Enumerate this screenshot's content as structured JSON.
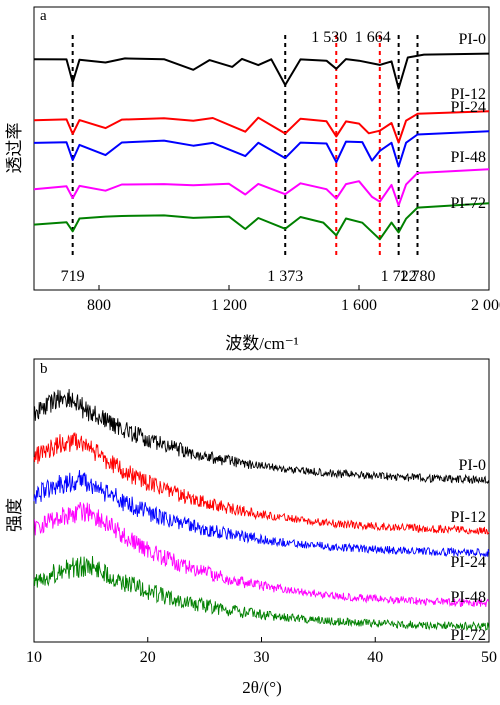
{
  "chart_data": [
    {
      "panel": "a",
      "type": "line",
      "xlabel": "波数/cm⁻¹",
      "ylabel": "透过率",
      "xlim": [
        600,
        2000
      ],
      "xticks": [
        800,
        1200,
        1600,
        2000
      ],
      "xtick_labels": [
        "800",
        "1 200",
        "1 600",
        "2 000"
      ],
      "series": [
        {
          "name": "PI-0",
          "color": "#000000",
          "values": [
            [
              600,
              0.56
            ],
            [
              700,
              0.56
            ],
            [
              719,
              0.1
            ],
            [
              740,
              0.54
            ],
            [
              820,
              0.5
            ],
            [
              880,
              0.56
            ],
            [
              1000,
              0.55
            ],
            [
              1090,
              0.35
            ],
            [
              1140,
              0.54
            ],
            [
              1210,
              0.4
            ],
            [
              1240,
              0.55
            ],
            [
              1290,
              0.45
            ],
            [
              1330,
              0.55
            ],
            [
              1373,
              0.05
            ],
            [
              1420,
              0.55
            ],
            [
              1500,
              0.52
            ],
            [
              1530,
              0.36
            ],
            [
              1560,
              0.56
            ],
            [
              1600,
              0.52
            ],
            [
              1664,
              0.44
            ],
            [
              1700,
              0.5
            ],
            [
              1722,
              0.0
            ],
            [
              1750,
              0.58
            ],
            [
              1800,
              0.65
            ],
            [
              2000,
              0.66
            ]
          ]
        },
        {
          "name": "PI-12",
          "color": "#ff0000",
          "values": [
            [
              600,
              0.45
            ],
            [
              700,
              0.48
            ],
            [
              719,
              0.2
            ],
            [
              740,
              0.45
            ],
            [
              820,
              0.3
            ],
            [
              870,
              0.46
            ],
            [
              1000,
              0.5
            ],
            [
              1090,
              0.44
            ],
            [
              1150,
              0.5
            ],
            [
              1250,
              0.24
            ],
            [
              1290,
              0.5
            ],
            [
              1373,
              0.2
            ],
            [
              1420,
              0.48
            ],
            [
              1500,
              0.44
            ],
            [
              1530,
              0.14
            ],
            [
              1560,
              0.44
            ],
            [
              1600,
              0.4
            ],
            [
              1630,
              0.2
            ],
            [
              1664,
              0.26
            ],
            [
              1700,
              0.4
            ],
            [
              1722,
              0.02
            ],
            [
              1745,
              0.45
            ],
            [
              1780,
              0.58
            ],
            [
              2000,
              0.62
            ]
          ]
        },
        {
          "name": "PI-24",
          "color": "#0000ff",
          "values": [
            [
              600,
              0.48
            ],
            [
              700,
              0.5
            ],
            [
              719,
              0.15
            ],
            [
              740,
              0.45
            ],
            [
              820,
              0.25
            ],
            [
              870,
              0.48
            ],
            [
              1000,
              0.52
            ],
            [
              1090,
              0.44
            ],
            [
              1150,
              0.48
            ],
            [
              1250,
              0.22
            ],
            [
              1290,
              0.48
            ],
            [
              1373,
              0.2
            ],
            [
              1420,
              0.5
            ],
            [
              1500,
              0.46
            ],
            [
              1530,
              0.12
            ],
            [
              1560,
              0.5
            ],
            [
              1610,
              0.5
            ],
            [
              1640,
              0.15
            ],
            [
              1664,
              0.32
            ],
            [
              1700,
              0.48
            ],
            [
              1722,
              0.02
            ],
            [
              1745,
              0.48
            ],
            [
              1780,
              0.65
            ],
            [
              2000,
              0.7
            ]
          ]
        },
        {
          "name": "PI-48",
          "color": "#ff00ff",
          "values": [
            [
              600,
              0.4
            ],
            [
              700,
              0.46
            ],
            [
              719,
              0.22
            ],
            [
              740,
              0.46
            ],
            [
              820,
              0.38
            ],
            [
              870,
              0.48
            ],
            [
              1000,
              0.5
            ],
            [
              1090,
              0.48
            ],
            [
              1200,
              0.5
            ],
            [
              1250,
              0.3
            ],
            [
              1290,
              0.5
            ],
            [
              1373,
              0.3
            ],
            [
              1420,
              0.52
            ],
            [
              1500,
              0.4
            ],
            [
              1530,
              0.22
            ],
            [
              1560,
              0.5
            ],
            [
              1600,
              0.55
            ],
            [
              1640,
              0.25
            ],
            [
              1664,
              0.16
            ],
            [
              1700,
              0.48
            ],
            [
              1722,
              0.08
            ],
            [
              1745,
              0.5
            ],
            [
              1780,
              0.7
            ],
            [
              2000,
              0.78
            ]
          ]
        },
        {
          "name": "PI-72",
          "color": "#008000",
          "values": [
            [
              600,
              0.38
            ],
            [
              700,
              0.42
            ],
            [
              719,
              0.25
            ],
            [
              740,
              0.48
            ],
            [
              820,
              0.52
            ],
            [
              870,
              0.55
            ],
            [
              1000,
              0.56
            ],
            [
              1090,
              0.5
            ],
            [
              1200,
              0.52
            ],
            [
              1250,
              0.3
            ],
            [
              1290,
              0.5
            ],
            [
              1373,
              0.3
            ],
            [
              1420,
              0.52
            ],
            [
              1490,
              0.42
            ],
            [
              1530,
              0.16
            ],
            [
              1560,
              0.48
            ],
            [
              1610,
              0.4
            ],
            [
              1664,
              0.1
            ],
            [
              1700,
              0.42
            ],
            [
              1722,
              0.22
            ],
            [
              1745,
              0.48
            ],
            [
              1780,
              0.7
            ],
            [
              2000,
              0.78
            ]
          ]
        }
      ],
      "ref_lines": [
        {
          "x": 719,
          "color": "#000000",
          "label": "719",
          "label_pos": "bottom"
        },
        {
          "x": 1373,
          "color": "#000000",
          "label": "1 373",
          "label_pos": "bottom"
        },
        {
          "x": 1530,
          "color": "#ff0000",
          "label": "1 530",
          "label_pos": "top"
        },
        {
          "x": 1664,
          "color": "#ff0000",
          "label": "1 664",
          "label_pos": "top"
        },
        {
          "x": 1722,
          "color": "#000000",
          "label": "1 722",
          "label_pos": "bottom"
        },
        {
          "x": 1780,
          "color": "#000000",
          "label": "1 780",
          "label_pos": "bottom"
        }
      ]
    },
    {
      "panel": "b",
      "type": "line",
      "xlabel": "2θ/(°)",
      "ylabel": "强度",
      "xlim": [
        10,
        50
      ],
      "xticks": [
        10,
        20,
        30,
        40,
        50
      ],
      "xtick_labels": [
        "10",
        "20",
        "30",
        "40",
        "50"
      ],
      "series": [
        {
          "name": "PI-0",
          "color": "#000000",
          "peak": 13,
          "height": 0.17,
          "baseline": 0.0
        },
        {
          "name": "PI-12",
          "color": "#ff0000",
          "peak": 14,
          "height": 0.165,
          "baseline": 0.0
        },
        {
          "name": "PI-24",
          "color": "#0000ff",
          "peak": 14.5,
          "height": 0.13,
          "baseline": 0.0
        },
        {
          "name": "PI-48",
          "color": "#ff00ff",
          "peak": 15,
          "height": 0.17,
          "baseline": 0.0
        },
        {
          "name": "PI-72",
          "color": "#008000",
          "peak": 15,
          "height": 0.14,
          "baseline": 0.0
        }
      ]
    }
  ]
}
